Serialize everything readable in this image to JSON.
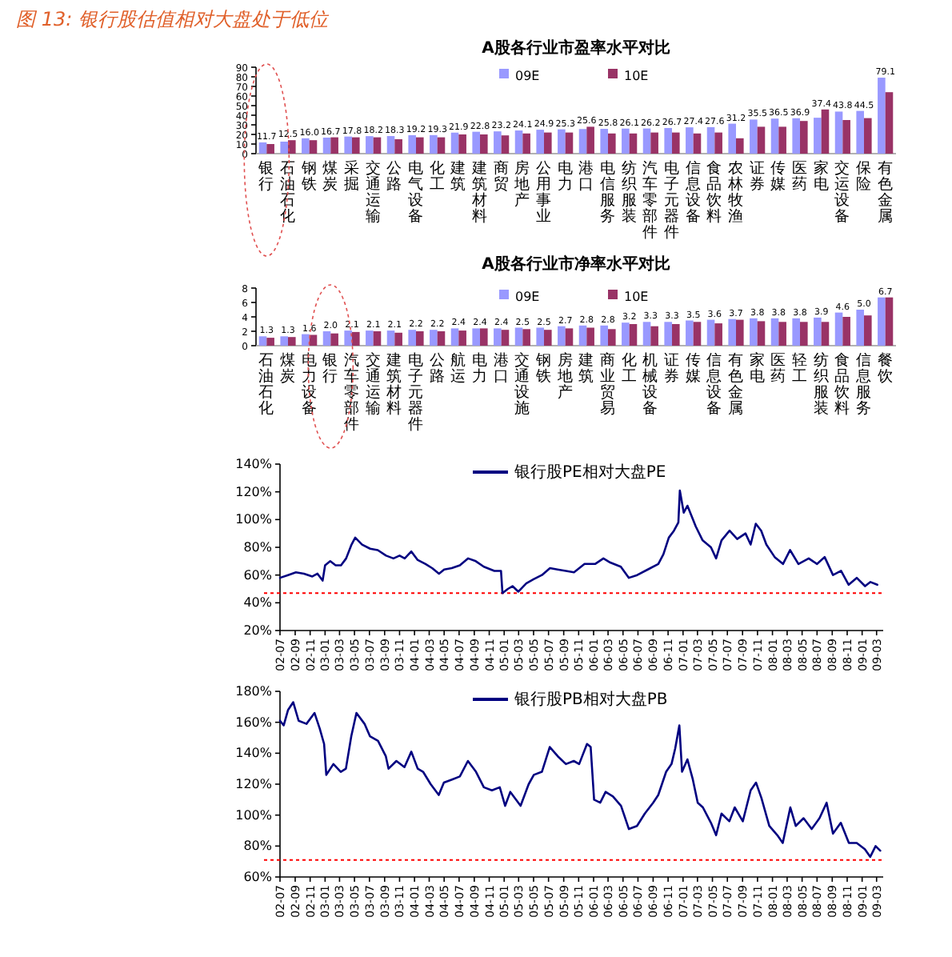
{
  "chart_data": [
    {
      "type": "bar",
      "title": "A股各行业市盈率水平对比",
      "annotations": [
        "图 13: 银行股估值相对大盘处于低位"
      ],
      "categories": [
        "银行",
        "石油石化",
        "钢铁",
        "煤炭",
        "采掘",
        "交通运输",
        "公路",
        "电气设备",
        "化工",
        "建筑",
        "建筑材料",
        "商贸",
        "房地产",
        "公用事业",
        "电力",
        "港口",
        "电信服务",
        "纺织服装",
        "汽车零部件",
        "电子元器件",
        "信息设备",
        "食品饮料",
        "农林牧渔",
        "证券",
        "传媒",
        "医药",
        "家电",
        "交运设备",
        "保险",
        "有色金属"
      ],
      "series": [
        {
          "name": "09E",
          "color": "#9999ff",
          "values": [
            11.7,
            12.5,
            16.0,
            16.7,
            17.8,
            18.2,
            18.3,
            19.2,
            19.3,
            21.9,
            22.8,
            23.2,
            24.1,
            24.9,
            25.3,
            25.6,
            25.8,
            26.1,
            26.2,
            26.7,
            27.4,
            27.6,
            31.2,
            35.5,
            36.5,
            36.9,
            37.4,
            43.8,
            44.5,
            79.1
          ],
          "value_labels": [
            "11.7",
            "12.5",
            "16.0",
            "16.7",
            "17.8",
            "18.2",
            "18.3",
            "19.2",
            "19.3",
            "21.9",
            "22.8",
            "23.2",
            "24.1",
            "24.9",
            "25.3",
            "25.6",
            "25.8",
            "26.1",
            "26.2",
            "26.7",
            "27.4",
            "27.6",
            "31.2",
            "35.5",
            "36.5",
            "36.9",
            "37.4",
            "43.8",
            "44.5",
            "79.1"
          ]
        },
        {
          "name": "10E",
          "color": "#993366",
          "values": [
            10,
            14,
            14,
            17,
            17,
            17,
            15,
            17,
            17,
            20,
            20,
            19,
            21,
            22,
            22,
            28,
            21,
            21,
            22,
            22,
            21,
            22,
            16,
            28,
            28,
            34,
            46,
            35,
            37,
            64
          ]
        }
      ],
      "ylim": [
        0,
        90
      ],
      "yticks": [
        0,
        10,
        20,
        30,
        40,
        50,
        60,
        70,
        80,
        90
      ],
      "legend": "top"
    },
    {
      "type": "bar",
      "title": "A股各行业市净率水平对比",
      "categories": [
        "石油石化",
        "煤炭",
        "电力设备",
        "银行",
        "汽车零部件",
        "交通运输",
        "建筑材料",
        "电子元器件",
        "公路",
        "航运",
        "电力",
        "港口",
        "交通设施",
        "钢铁",
        "房地产",
        "建筑",
        "商业贸易",
        "化工",
        "机械设备",
        "证券",
        "传媒",
        "信息设备",
        "有色金属",
        "家电",
        "医药",
        "轻工",
        "纺织服装",
        "食品饮料",
        "信息服务",
        "餐饮"
      ],
      "series": [
        {
          "name": "09E",
          "color": "#9999ff",
          "values": [
            1.3,
            1.3,
            1.6,
            2.0,
            2.1,
            2.1,
            2.1,
            2.2,
            2.2,
            2.4,
            2.4,
            2.4,
            2.5,
            2.5,
            2.7,
            2.8,
            2.8,
            3.2,
            3.3,
            3.3,
            3.5,
            3.6,
            3.7,
            3.8,
            3.8,
            3.8,
            3.9,
            4.6,
            5.0,
            6.7
          ],
          "value_labels": [
            "1.3",
            "1.3",
            "1.6",
            "2.0",
            "2.1",
            "2.1",
            "2.1",
            "2.2",
            "2.2",
            "2.4",
            "2.4",
            "2.4",
            "2.5",
            "2.5",
            "2.7",
            "2.8",
            "2.8",
            "3.2",
            "3.3",
            "3.3",
            "3.5",
            "3.6",
            "3.7",
            "3.8",
            "3.8",
            "3.8",
            "3.9",
            "4.6",
            "5.0",
            "6.7"
          ]
        },
        {
          "name": "10E",
          "color": "#993366",
          "values": [
            1.1,
            1.2,
            1.5,
            1.7,
            1.9,
            2.0,
            1.8,
            2.0,
            2.0,
            2.1,
            2.4,
            2.2,
            2.3,
            2.2,
            2.4,
            2.5,
            2.3,
            3.0,
            2.7,
            3.0,
            3.3,
            3.1,
            3.6,
            3.4,
            3.3,
            3.3,
            3.3,
            4.0,
            4.2,
            6.7
          ]
        }
      ],
      "ylim": [
        0,
        8
      ],
      "yticks": [
        0,
        2,
        4,
        6,
        8
      ],
      "legend": "top"
    },
    {
      "type": "line",
      "x": [
        "2002-07-01",
        "2002-08-03",
        "2002-09-04",
        "2002-10-07",
        "2002-11-10",
        "2002-12-01",
        "2002-12-22",
        "2003-01-01",
        "2003-01-22",
        "2003-02-13",
        "2003-03-07",
        "2003-03-28",
        "2003-04-19",
        "2003-05-04",
        "2003-06-01",
        "2003-07-04",
        "2003-08-04",
        "2003-09-07",
        "2003-10-07",
        "2003-11-01",
        "2003-11-22",
        "2003-12-19",
        "2004-01-13",
        "2004-02-15",
        "2004-03-13",
        "2004-04-10",
        "2004-05-01",
        "2004-06-01",
        "2004-07-04",
        "2004-08-07",
        "2004-09-07",
        "2004-10-10",
        "2004-11-22",
        "2004-12-19",
        "2004-12-25",
        "2005-01-16",
        "2005-02-04",
        "2005-02-28",
        "2005-04-01",
        "2005-05-01",
        "2005-06-04",
        "2005-07-07",
        "2005-08-07",
        "2005-09-10",
        "2005-10-13",
        "2005-11-25",
        "2006-01-07",
        "2006-02-10",
        "2006-03-10",
        "2006-04-22",
        "2006-05-25",
        "2006-06-28",
        "2006-08-10",
        "2006-09-22",
        "2006-10-13",
        "2006-11-04",
        "2006-11-25",
        "2006-12-13",
        "2006-12-19",
        "2007-01-04",
        "2007-01-19",
        "2007-02-22",
        "2007-03-22",
        "2007-04-25",
        "2007-05-16",
        "2007-06-07",
        "2007-07-10",
        "2007-08-10",
        "2007-09-13",
        "2007-10-04",
        "2007-10-25",
        "2007-11-16",
        "2007-12-07",
        "2008-01-10",
        "2008-02-13",
        "2008-03-13",
        "2008-04-16",
        "2008-05-28",
        "2008-07-01",
        "2008-08-01",
        "2008-09-04",
        "2008-10-07",
        "2008-11-07",
        "2008-12-10",
        "2009-01-13",
        "2009-02-04",
        "2009-03-04"
      ],
      "series": [
        {
          "name": "银行股PE相对大盘PE",
          "color": "#000080",
          "values": [
            58,
            60,
            62,
            61,
            59,
            61,
            56,
            67,
            70,
            67,
            67,
            72,
            82,
            87,
            82,
            79,
            78,
            74,
            72,
            74,
            72,
            77,
            71,
            68,
            65,
            61,
            64,
            65,
            67,
            72,
            70,
            66,
            63,
            63,
            47,
            50,
            52,
            48,
            54,
            57,
            60,
            65,
            64,
            63,
            62,
            68,
            68,
            72,
            69,
            66,
            58,
            60,
            64,
            68,
            75,
            87,
            92,
            98,
            121,
            105,
            110,
            95,
            85,
            80,
            72,
            85,
            92,
            86,
            90,
            82,
            97,
            92,
            82,
            73,
            68,
            78,
            68,
            72,
            68,
            73,
            60,
            63,
            53,
            58,
            52,
            55,
            53
          ]
        }
      ],
      "xlim": [
        "2002-07-01",
        "2009-03-28"
      ],
      "xticks": [
        {
          "value": "2002-07",
          "label": "02-07"
        },
        {
          "value": "2002-09",
          "label": "02-09"
        },
        {
          "value": "2002-11",
          "label": "02-11"
        },
        {
          "value": "2003-01",
          "label": "03-01"
        },
        {
          "value": "2003-03",
          "label": "03-03"
        },
        {
          "value": "2003-05",
          "label": "03-05"
        },
        {
          "value": "2003-07",
          "label": "03-07"
        },
        {
          "value": "2003-09",
          "label": "03-09"
        },
        {
          "value": "2003-11",
          "label": "03-11"
        },
        {
          "value": "2004-01",
          "label": "04-01"
        },
        {
          "value": "2004-03",
          "label": "04-03"
        },
        {
          "value": "2004-05",
          "label": "04-05"
        },
        {
          "value": "2004-07",
          "label": "04-07"
        },
        {
          "value": "2004-09",
          "label": "04-09"
        },
        {
          "value": "2004-11",
          "label": "04-11"
        },
        {
          "value": "2005-01",
          "label": "05-01"
        },
        {
          "value": "2005-03",
          "label": "05-03"
        },
        {
          "value": "2005-05",
          "label": "05-05"
        },
        {
          "value": "2005-07",
          "label": "05-07"
        },
        {
          "value": "2005-09",
          "label": "05-09"
        },
        {
          "value": "2005-11",
          "label": "05-11"
        },
        {
          "value": "2006-01",
          "label": "06-01"
        },
        {
          "value": "2006-03",
          "label": "06-03"
        },
        {
          "value": "2006-05",
          "label": "06-05"
        },
        {
          "value": "2006-07",
          "label": "06-07"
        },
        {
          "value": "2006-09",
          "label": "06-09"
        },
        {
          "value": "2006-11",
          "label": "06-11"
        },
        {
          "value": "2007-01",
          "label": "07-01"
        },
        {
          "value": "2007-03",
          "label": "07-03"
        },
        {
          "value": "2007-05",
          "label": "07-05"
        },
        {
          "value": "2007-07",
          "label": "07-07"
        },
        {
          "value": "2007-09",
          "label": "07-09"
        },
        {
          "value": "2007-11",
          "label": "07-11"
        },
        {
          "value": "2008-01",
          "label": "08-01"
        },
        {
          "value": "2008-03",
          "label": "08-03"
        },
        {
          "value": "2008-05",
          "label": "08-05"
        },
        {
          "value": "2008-07",
          "label": "08-07"
        },
        {
          "value": "2008-09",
          "label": "08-09"
        },
        {
          "value": "2008-11",
          "label": "08-11"
        },
        {
          "value": "2009-01",
          "label": "09-01"
        },
        {
          "value": "2009-03",
          "label": "09-03"
        }
      ],
      "ylim": [
        20,
        140
      ],
      "yticks": [
        {
          "value": 20,
          "label": "20%"
        },
        {
          "value": 40,
          "label": "40%"
        },
        {
          "value": 60,
          "label": "60%"
        },
        {
          "value": 80,
          "label": "80%"
        },
        {
          "value": 100,
          "label": "100%"
        },
        {
          "value": 120,
          "label": "120%"
        },
        {
          "value": 140,
          "label": "140%"
        }
      ],
      "ref_lines": [
        {
          "axis": "y",
          "value": 47,
          "color": "#ff0000",
          "line_style": "dotted"
        }
      ],
      "legend": "top"
    },
    {
      "type": "line",
      "x": [
        "2002-07-01",
        "2002-07-16",
        "2002-08-03",
        "2002-08-24",
        "2002-09-15",
        "2002-10-17",
        "2002-11-19",
        "2002-12-10",
        "2002-12-28",
        "2003-01-06",
        "2003-02-04",
        "2003-03-06",
        "2003-03-27",
        "2003-04-18",
        "2003-05-09",
        "2003-06-11",
        "2003-07-03",
        "2003-08-05",
        "2003-09-06",
        "2003-09-17",
        "2003-10-19",
        "2003-11-21",
        "2003-12-19",
        "2004-01-14",
        "2004-02-05",
        "2004-03-07",
        "2004-04-09",
        "2004-04-30",
        "2004-06-02",
        "2004-07-04",
        "2004-08-06",
        "2004-09-08",
        "2004-10-10",
        "2004-11-12",
        "2004-12-14",
        "2005-01-05",
        "2005-01-26",
        "2005-03-09",
        "2005-04-11",
        "2005-05-02",
        "2005-06-04",
        "2005-07-06",
        "2005-08-08",
        "2005-09-10",
        "2005-10-12",
        "2005-11-03",
        "2005-12-05",
        "2005-12-20",
        "2006-01-03",
        "2006-01-28",
        "2006-02-19",
        "2006-03-21",
        "2006-04-23",
        "2006-05-25",
        "2006-06-27",
        "2006-07-29",
        "2006-09-01",
        "2006-09-22",
        "2006-10-24",
        "2006-11-15",
        "2006-11-30",
        "2006-12-17",
        "2006-12-28",
        "2007-01-19",
        "2007-02-10",
        "2007-03-02",
        "2007-03-23",
        "2007-04-25",
        "2007-05-16",
        "2007-06-07",
        "2007-07-09",
        "2007-07-31",
        "2007-09-02",
        "2007-10-04",
        "2007-10-26",
        "2007-11-17",
        "2007-12-19",
        "2008-01-21",
        "2008-02-12",
        "2008-03-14",
        "2008-04-05",
        "2008-05-07",
        "2008-06-09",
        "2008-07-11",
        "2008-08-09",
        "2008-09-04",
        "2008-10-06",
        "2008-11-08",
        "2008-12-10",
        "2009-01-12",
        "2009-02-03",
        "2009-02-25",
        "2009-03-16"
      ],
      "series": [
        {
          "name": "银行股PB相对大盘PB",
          "color": "#000080",
          "values": [
            161,
            158,
            168,
            173,
            161,
            159,
            166,
            156,
            146,
            126,
            133,
            128,
            130,
            151,
            166,
            159,
            151,
            148,
            138,
            130,
            135,
            131,
            141,
            130,
            128,
            120,
            113,
            121,
            123,
            125,
            135,
            128,
            118,
            116,
            118,
            106,
            115,
            106,
            120,
            126,
            128,
            144,
            138,
            133,
            135,
            133,
            146,
            144,
            110,
            108,
            115,
            112,
            106,
            91,
            93,
            101,
            108,
            113,
            128,
            133,
            143,
            158,
            128,
            136,
            123,
            108,
            105,
            95,
            87,
            101,
            96,
            105,
            96,
            116,
            121,
            111,
            93,
            87,
            82,
            105,
            93,
            98,
            91,
            98,
            108,
            88,
            95,
            82,
            82,
            78,
            73,
            80,
            77
          ]
        }
      ],
      "xlim": [
        "2002-07-01",
        "2009-03-28"
      ],
      "xticks": [
        {
          "value": "2002-07",
          "label": "02-07"
        },
        {
          "value": "2002-09",
          "label": "02-09"
        },
        {
          "value": "2002-11",
          "label": "02-11"
        },
        {
          "value": "2003-01",
          "label": "03-01"
        },
        {
          "value": "2003-03",
          "label": "03-03"
        },
        {
          "value": "2003-05",
          "label": "03-05"
        },
        {
          "value": "2003-07",
          "label": "03-07"
        },
        {
          "value": "2003-09",
          "label": "03-09"
        },
        {
          "value": "2003-11",
          "label": "03-11"
        },
        {
          "value": "2004-01",
          "label": "04-01"
        },
        {
          "value": "2004-03",
          "label": "04-03"
        },
        {
          "value": "2004-05",
          "label": "04-05"
        },
        {
          "value": "2004-07",
          "label": "04-07"
        },
        {
          "value": "2004-09",
          "label": "04-09"
        },
        {
          "value": "2004-11",
          "label": "04-11"
        },
        {
          "value": "2005-01",
          "label": "05-01"
        },
        {
          "value": "2005-03",
          "label": "05-03"
        },
        {
          "value": "2005-05",
          "label": "05-05"
        },
        {
          "value": "2005-07",
          "label": "05-07"
        },
        {
          "value": "2005-09",
          "label": "05-09"
        },
        {
          "value": "2005-11",
          "label": "05-11"
        },
        {
          "value": "2006-01",
          "label": "06-01"
        },
        {
          "value": "2006-03",
          "label": "06-03"
        },
        {
          "value": "2006-05",
          "label": "06-05"
        },
        {
          "value": "2006-07",
          "label": "06-07"
        },
        {
          "value": "2006-09",
          "label": "06-09"
        },
        {
          "value": "2006-11",
          "label": "06-11"
        },
        {
          "value": "2007-01",
          "label": "07-01"
        },
        {
          "value": "2007-03",
          "label": "07-03"
        },
        {
          "value": "2007-05",
          "label": "07-05"
        },
        {
          "value": "2007-07",
          "label": "07-07"
        },
        {
          "value": "2007-09",
          "label": "07-09"
        },
        {
          "value": "2007-11",
          "label": "07-11"
        },
        {
          "value": "2008-01",
          "label": "08-01"
        },
        {
          "value": "2008-03",
          "label": "08-03"
        },
        {
          "value": "2008-05",
          "label": "08-05"
        },
        {
          "value": "2008-07",
          "label": "08-07"
        },
        {
          "value": "2008-09",
          "label": "08-09"
        },
        {
          "value": "2008-11",
          "label": "08-11"
        },
        {
          "value": "2009-01",
          "label": "09-01"
        },
        {
          "value": "2009-03",
          "label": "09-03"
        }
      ],
      "ylim": [
        60,
        180
      ],
      "yticks": [
        {
          "value": 60,
          "label": "60%"
        },
        {
          "value": 80,
          "label": "80%"
        },
        {
          "value": 100,
          "label": "100%"
        },
        {
          "value": 120,
          "label": "120%"
        },
        {
          "value": 140,
          "label": "140%"
        },
        {
          "value": 160,
          "label": "160%"
        },
        {
          "value": 180,
          "label": "180%"
        }
      ],
      "ref_lines": [
        {
          "axis": "y",
          "value": 71,
          "color": "#ff0000",
          "line_style": "dotted"
        }
      ],
      "legend": "top"
    }
  ]
}
